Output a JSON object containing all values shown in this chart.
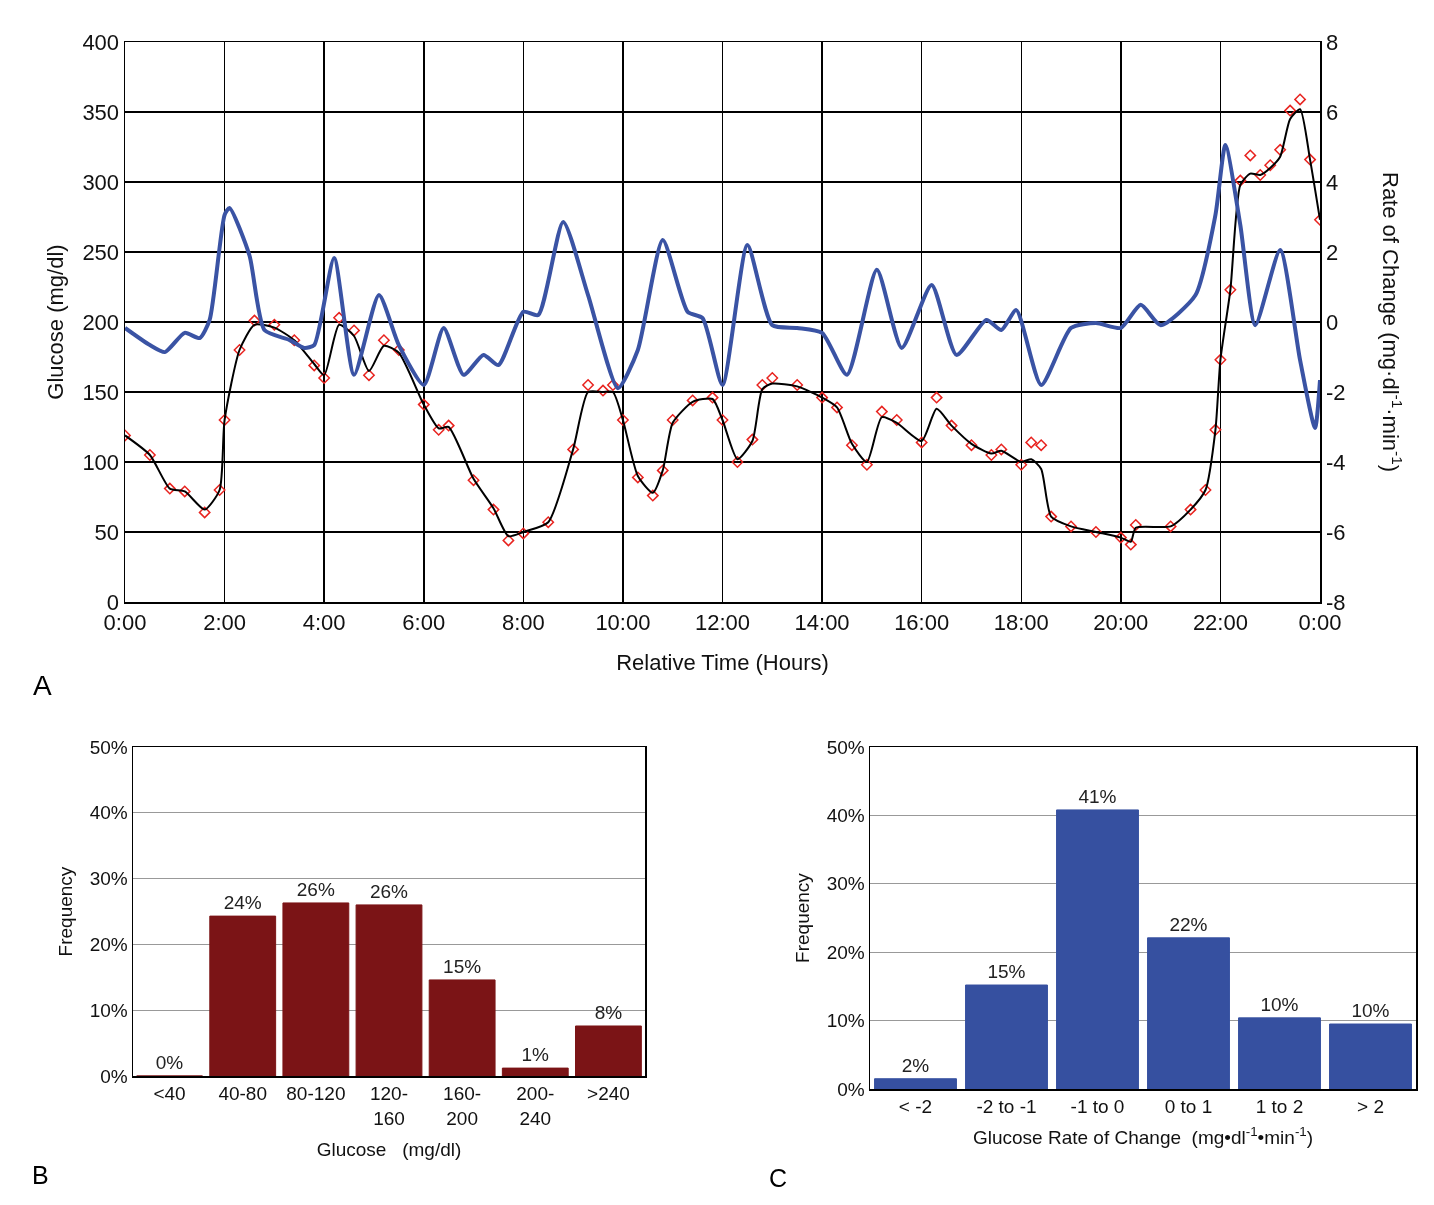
{
  "chart_data": [
    {
      "type": "line",
      "xlabel": "Relative Time (Hours)",
      "ylabel": "Glucose (mg/dl)",
      "y2label": "Rate of Change (mg·dl$^{-1}$·min$^{-1}$)",
      "annotations": [
        "A"
      ],
      "grid": true,
      "xlim": [
        0,
        24
      ],
      "xticks": [
        {
          "value": 0,
          "label": "0:00"
        },
        {
          "value": 2,
          "label": "2:00"
        },
        {
          "value": 4,
          "label": "4:00"
        },
        {
          "value": 6,
          "label": "6:00"
        },
        {
          "value": 8,
          "label": "8:00"
        },
        {
          "value": 10,
          "label": "10:00"
        },
        {
          "value": 12,
          "label": "12:00"
        },
        {
          "value": 14,
          "label": "14:00"
        },
        {
          "value": 16,
          "label": "16:00"
        },
        {
          "value": 18,
          "label": "18:00"
        },
        {
          "value": 20,
          "label": "20:00"
        },
        {
          "value": 22,
          "label": "22:00"
        },
        {
          "value": 24,
          "label": "0:00"
        }
      ],
      "ylim": [
        0,
        400
      ],
      "yticks": [
        0,
        50,
        100,
        150,
        200,
        250,
        300,
        350,
        400
      ],
      "y2lim": [
        -8,
        8
      ],
      "y2ticks": [
        -8,
        -6,
        -4,
        -2,
        0,
        2,
        4,
        6,
        8
      ],
      "series": [
        {
          "type": "scatter",
          "marker": "diamond",
          "color": "#e8231f",
          "x": [
            0,
            0.5,
            0.9,
            1.2,
            1.6,
            1.9,
            2.0,
            2.3,
            2.6,
            3.0,
            3.4,
            3.8,
            4.0,
            4.3,
            4.6,
            4.9,
            5.2,
            5.5,
            6.0,
            6.3,
            6.5,
            7.0,
            7.4,
            7.7,
            8.0,
            8.5,
            9.0,
            9.3,
            9.6,
            9.8,
            10.0,
            10.3,
            10.6,
            10.8,
            11.0,
            11.4,
            11.8,
            12.0,
            12.3,
            12.6,
            12.8,
            13.0,
            13.5,
            14.0,
            14.3,
            14.6,
            14.9,
            15.2,
            15.5,
            16.0,
            16.3,
            16.6,
            17.0,
            17.4,
            17.6,
            18.0,
            18.2,
            18.4,
            18.6,
            19.0,
            19.5,
            20.0,
            20.2,
            20.3,
            21.0,
            21.4,
            21.7,
            21.9,
            22.0,
            22.2,
            22.4,
            22.6,
            22.8,
            23.0,
            23.2,
            23.4,
            23.6,
            23.8,
            24.0
          ],
          "values": [
            119,
            105,
            81,
            79,
            64,
            80,
            130,
            180,
            201,
            198,
            187,
            169,
            160,
            203,
            194,
            162,
            187,
            180,
            141,
            123,
            126,
            87,
            66,
            44,
            49,
            57,
            109,
            155,
            151,
            155,
            130,
            89,
            76,
            94,
            130,
            144,
            146,
            130,
            100,
            116,
            155,
            160,
            155,
            146,
            139,
            112,
            98,
            136,
            130,
            114,
            146,
            126,
            112,
            105,
            109,
            98,
            114,
            112,
            61,
            54,
            50,
            46,
            41,
            55,
            54,
            66,
            80,
            123,
            173,
            223,
            301,
            319,
            305,
            312,
            323,
            351,
            359,
            316,
            273
          ]
        },
        {
          "type": "line",
          "color": "#000000",
          "x": [
            0,
            0.5,
            0.9,
            1.2,
            1.6,
            1.9,
            2.0,
            2.3,
            2.6,
            3.0,
            3.4,
            3.8,
            4.0,
            4.3,
            4.6,
            4.9,
            5.2,
            5.5,
            6.0,
            6.3,
            6.5,
            7.0,
            7.4,
            7.7,
            8.0,
            8.5,
            9.0,
            9.3,
            9.6,
            9.8,
            10.0,
            10.3,
            10.6,
            10.8,
            11.0,
            11.4,
            11.8,
            12.0,
            12.3,
            12.6,
            12.8,
            13.0,
            13.5,
            14.0,
            14.3,
            14.6,
            14.9,
            15.2,
            15.5,
            16.0,
            16.3,
            16.6,
            17.0,
            17.4,
            17.6,
            18.0,
            18.2,
            18.4,
            18.6,
            19.0,
            19.5,
            20.0,
            20.2,
            20.3,
            21.0,
            21.4,
            21.7,
            21.9,
            22.0,
            22.2,
            22.4,
            22.6,
            22.8,
            23.0,
            23.2,
            23.4,
            23.6,
            23.8,
            24.0
          ],
          "values": [
            119,
            105,
            81,
            79,
            66,
            80,
            130,
            180,
            198,
            196,
            187,
            170,
            162,
            198,
            190,
            165,
            183,
            178,
            141,
            124,
            125,
            88,
            67,
            47,
            50,
            57,
            109,
            150,
            150,
            150,
            130,
            90,
            78,
            94,
            128,
            143,
            145,
            130,
            102,
            115,
            152,
            156,
            154,
            146,
            139,
            113,
            100,
            132,
            128,
            115,
            138,
            126,
            113,
            106,
            108,
            100,
            102,
            95,
            61,
            54,
            50,
            46,
            43,
            53,
            54,
            66,
            80,
            123,
            173,
            223,
            298,
            306,
            305,
            310,
            318,
            345,
            352,
            316,
            273
          ]
        },
        {
          "type": "line",
          "axis": "y2",
          "color": "#3a53a4",
          "x": [
            0,
            0.5,
            0.8,
            1.2,
            1.5,
            1.7,
            2.0,
            2.1,
            2.5,
            2.8,
            3.3,
            3.6,
            3.8,
            4.2,
            4.6,
            5.1,
            5.5,
            6.0,
            6.4,
            6.8,
            7.2,
            7.5,
            8.0,
            8.3,
            8.8,
            9.3,
            9.9,
            10.3,
            10.8,
            11.3,
            11.6,
            12.0,
            12.5,
            13.0,
            13.5,
            14.0,
            14.5,
            15.1,
            15.6,
            16.2,
            16.7,
            17.3,
            17.6,
            17.9,
            18.4,
            19.0,
            19.5,
            20.0,
            20.4,
            20.8,
            21.5,
            21.9,
            22.1,
            22.4,
            22.7,
            23.2,
            23.6,
            23.9,
            24.0
          ],
          "values": [
            -0.17,
            -0.66,
            -0.86,
            -0.31,
            -0.46,
            0.06,
            3.06,
            3.26,
            1.9,
            -0.23,
            -0.51,
            -0.74,
            -0.66,
            1.83,
            -1.51,
            0.77,
            -0.66,
            -1.8,
            -0.17,
            -1.51,
            -0.94,
            -1.23,
            0.29,
            0.2,
            2.86,
            0.77,
            -1.89,
            -0.8,
            2.34,
            0.29,
            0.11,
            -1.8,
            2.2,
            -0.09,
            -0.17,
            -0.31,
            -1.51,
            1.49,
            -0.74,
            1.06,
            -0.94,
            0.06,
            -0.23,
            0.34,
            -1.8,
            -0.17,
            -0.03,
            -0.17,
            0.49,
            -0.09,
            0.77,
            3.06,
            5.06,
            2.77,
            -0.09,
            2.06,
            -1.09,
            -3.03,
            -1.66
          ]
        }
      ]
    },
    {
      "type": "bar",
      "xlabel": "Glucose   (mg/dl)",
      "ylabel": "Frequency",
      "annotations": [
        "B"
      ],
      "grid": "y",
      "color": "#7b1416",
      "categories": [
        "<40",
        "40-80",
        "80-120",
        "120-\n160",
        "160-\n200",
        "200-\n240",
        ">240"
      ],
      "values": [
        0,
        24.3,
        26.3,
        26.0,
        14.6,
        1.2,
        7.6
      ],
      "value_labels": [
        "0%",
        "24%",
        "26%",
        "26%",
        "15%",
        "1%",
        "8%"
      ],
      "ylim": [
        0,
        50
      ],
      "yticks": [
        {
          "value": 0,
          "label": "0%"
        },
        {
          "value": 10,
          "label": "10%"
        },
        {
          "value": 20,
          "label": "20%"
        },
        {
          "value": 30,
          "label": "30%"
        },
        {
          "value": 40,
          "label": "40%"
        },
        {
          "value": 50,
          "label": "50%"
        }
      ]
    },
    {
      "type": "bar",
      "xlabel": "Glucose Rate of Change  (mg•dl$^{-1}$•min$^{-1}$)",
      "ylabel": "Frequency",
      "annotations": [
        "C"
      ],
      "grid": "y",
      "color": "#3650a0",
      "categories": [
        "< -2",
        "-2 to -1",
        "-1 to 0",
        "0 to 1",
        "1 to 2",
        "> 2"
      ],
      "values": [
        1.5,
        15.2,
        40.8,
        22.1,
        10.4,
        9.5
      ],
      "value_labels": [
        "2%",
        "15%",
        "41%",
        "22%",
        "10%",
        "10%"
      ],
      "ylim": [
        0,
        50
      ],
      "yticks": [
        {
          "value": 0,
          "label": "0%"
        },
        {
          "value": 10,
          "label": "10%"
        },
        {
          "value": 20,
          "label": "20%"
        },
        {
          "value": 30,
          "label": "30%"
        },
        {
          "value": 40,
          "label": "40%"
        },
        {
          "value": 50,
          "label": "50%"
        }
      ]
    }
  ]
}
